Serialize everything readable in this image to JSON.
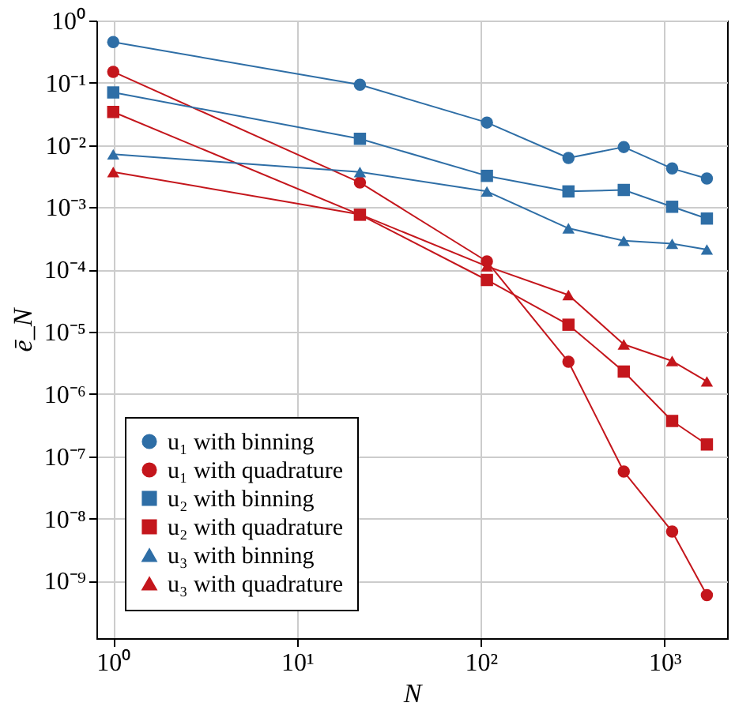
{
  "chart_data": {
    "type": "line",
    "xlabel": "N",
    "ylabel": "ē_N",
    "log": "xy",
    "grid": true,
    "legend": "bottom left",
    "x": [
      1,
      22,
      108,
      300,
      600,
      1100,
      1700
    ],
    "xlim": [
      0.81,
      2190
    ],
    "ylim": [
      1.2e-10,
      1
    ],
    "xticks": [
      {
        "value": 1,
        "label": "10⁰"
      },
      {
        "value": 10,
        "label": "10¹"
      },
      {
        "value": 100,
        "label": "10²"
      },
      {
        "value": 1000,
        "label": "10³"
      }
    ],
    "yticks": [
      {
        "value": 1e-09,
        "label": "10⁻⁹"
      },
      {
        "value": 1e-08,
        "label": "10⁻⁸"
      },
      {
        "value": 1e-07,
        "label": "10⁻⁷"
      },
      {
        "value": 1e-06,
        "label": "10⁻⁶"
      },
      {
        "value": 1e-05,
        "label": "10⁻⁵"
      },
      {
        "value": 0.0001,
        "label": "10⁻⁴"
      },
      {
        "value": 0.001,
        "label": "10⁻³"
      },
      {
        "value": 0.01,
        "label": "10⁻²"
      },
      {
        "value": 0.1,
        "label": "10⁻¹"
      },
      {
        "value": 1,
        "label": "10⁰"
      }
    ],
    "series": [
      {
        "name": "u₁ with binning",
        "color": "#2e6ea6",
        "marker": "circle",
        "values": [
          0.45,
          0.093,
          0.023,
          0.0062,
          0.0093,
          0.0042,
          0.0029
        ]
      },
      {
        "name": "u₁ with quadrature",
        "color": "#c4161c",
        "marker": "circle",
        "values": [
          0.15,
          0.0025,
          0.000135,
          3.3e-06,
          5.7e-08,
          6.2e-09,
          5.9e-10
        ]
      },
      {
        "name": "u₂ with binning",
        "color": "#2e6ea6",
        "marker": "square",
        "values": [
          0.07,
          0.0126,
          0.0032,
          0.0018,
          0.0019,
          0.00102,
          0.00066
        ]
      },
      {
        "name": "u₂ with quadrature",
        "color": "#c4161c",
        "marker": "square",
        "values": [
          0.034,
          0.00076,
          6.8e-05,
          1.3e-05,
          2.3e-06,
          3.7e-07,
          1.55e-07
        ]
      },
      {
        "name": "u₃ with binning",
        "color": "#2e6ea6",
        "marker": "triangle",
        "values": [
          0.0071,
          0.0037,
          0.0018,
          0.00046,
          0.00029,
          0.00026,
          0.00021
        ]
      },
      {
        "name": "u₃ with quadrature",
        "color": "#c4161c",
        "marker": "triangle",
        "values": [
          0.0037,
          0.00077,
          0.000113,
          3.9e-05,
          6.3e-06,
          3.4e-06,
          1.6e-06
        ]
      }
    ]
  }
}
